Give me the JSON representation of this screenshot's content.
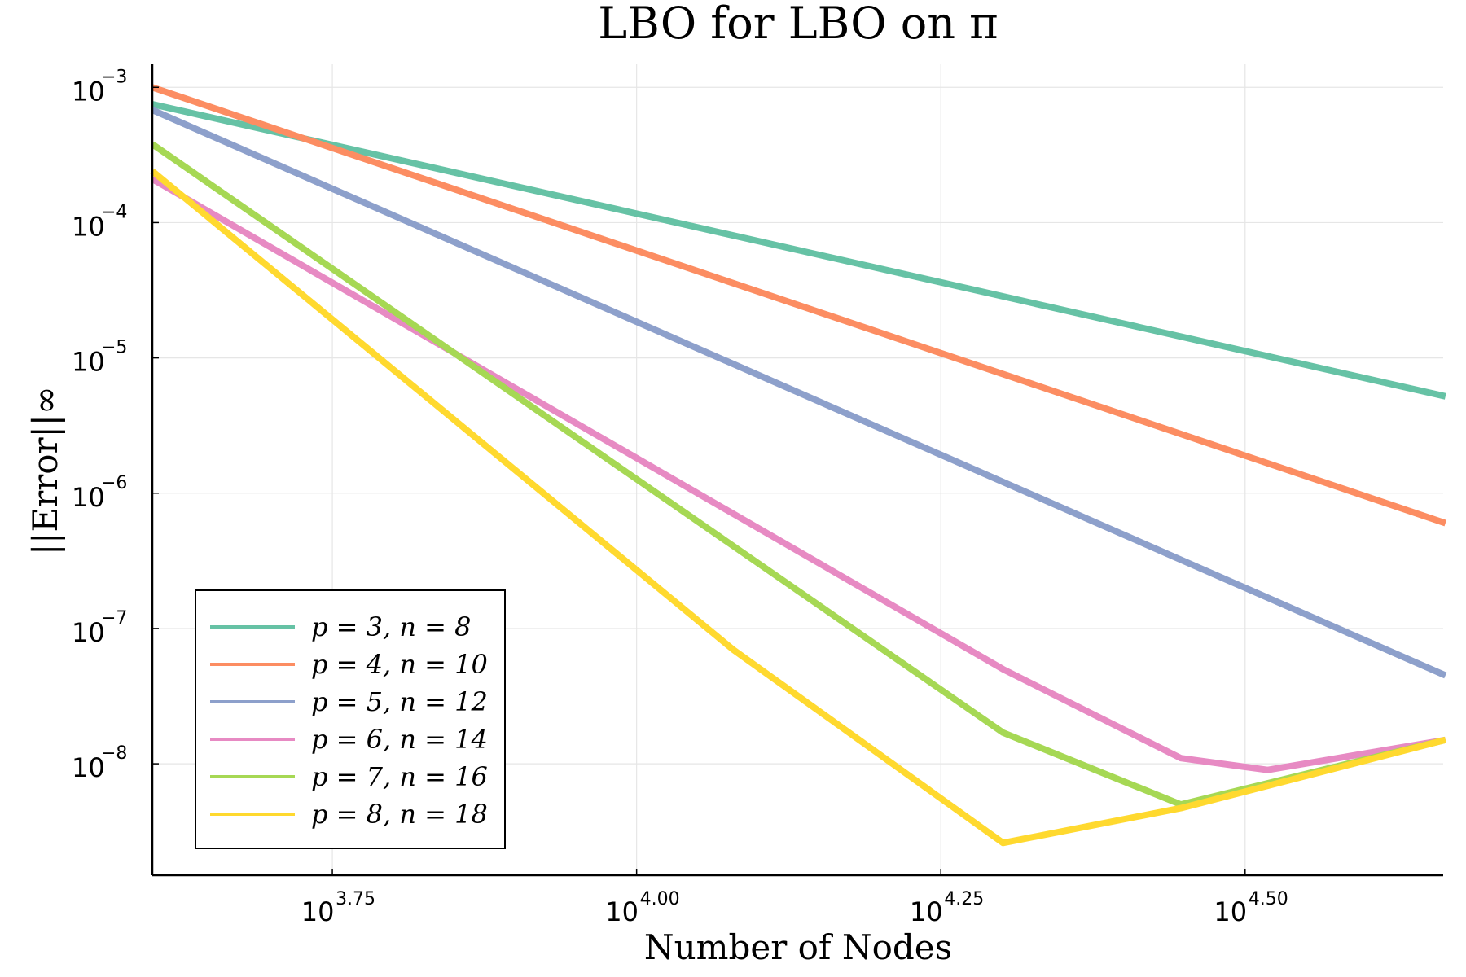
{
  "chart_data": {
    "type": "line",
    "title": "LBO for LBO on π",
    "xlabel": "Number of Nodes",
    "ylabel": "||Error||∞",
    "x_scale": "log10",
    "y_scale": "log10",
    "xlim": [
      4000,
      46000
    ],
    "ylim": [
      1.5e-09,
      0.0015
    ],
    "x_ticks": [
      {
        "base": "10",
        "exp": "3.75",
        "value": 5623.4
      },
      {
        "base": "10",
        "exp": "4.00",
        "value": 10000
      },
      {
        "base": "10",
        "exp": "4.25",
        "value": 17782.8
      },
      {
        "base": "10",
        "exp": "4.50",
        "value": 31622.8
      }
    ],
    "y_ticks": [
      {
        "base": "10",
        "exp": "−3",
        "value": 0.001
      },
      {
        "base": "10",
        "exp": "−4",
        "value": 0.0001
      },
      {
        "base": "10",
        "exp": "−5",
        "value": 1e-05
      },
      {
        "base": "10",
        "exp": "−6",
        "value": 1e-06
      },
      {
        "base": "10",
        "exp": "−7",
        "value": 1e-07
      },
      {
        "base": "10",
        "exp": "−8",
        "value": 1e-08
      }
    ],
    "grid": true,
    "legend_position": "bottom-left",
    "series": [
      {
        "name": "p = 3, n = 8",
        "color": "#66c2a5",
        "x": [
          4000,
          46200
        ],
        "y": [
          0.00075,
          5.2e-06
        ]
      },
      {
        "name": "p = 4, n = 10",
        "color": "#fc8d62",
        "x": [
          4000,
          46200
        ],
        "y": [
          0.001,
          6e-07
        ]
      },
      {
        "name": "p = 5, n = 12",
        "color": "#8da0cb",
        "x": [
          4000,
          46200
        ],
        "y": [
          0.00068,
          4.5e-08
        ]
      },
      {
        "name": "p = 6, n = 14",
        "color": "#e78ac3",
        "x": [
          4000,
          20000,
          28000,
          33000,
          46200
        ],
        "y": [
          0.00021,
          5e-08,
          1.1e-08,
          9e-09,
          1.5e-08
        ]
      },
      {
        "name": "p = 7, n = 16",
        "color": "#a6d854",
        "x": [
          4000,
          20000,
          28000,
          46200
        ],
        "y": [
          0.00038,
          1.7e-08,
          5e-09,
          1.5e-08
        ]
      },
      {
        "name": "p = 8, n = 18",
        "color": "#ffd92f",
        "x": [
          4000,
          12000,
          20000,
          28000,
          46200
        ],
        "y": [
          0.00024,
          7e-08,
          2.6e-09,
          4.7e-09,
          1.5e-08
        ]
      }
    ]
  }
}
